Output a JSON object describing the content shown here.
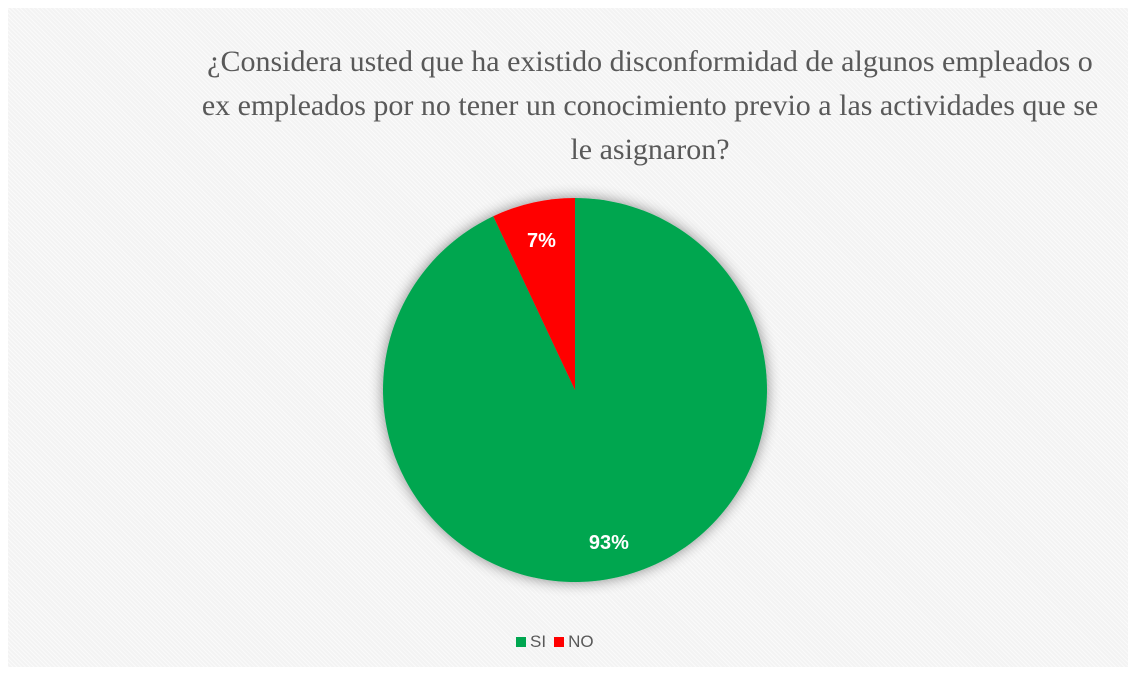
{
  "chart_data": {
    "type": "pie",
    "title": "¿Considera usted que ha existido disconformidad de algunos empleados o ex empleados por no tener un conocimiento previo a las actividades que se le asignaron?",
    "categories": [
      "SI",
      "NO"
    ],
    "values": [
      93,
      7
    ],
    "labels": [
      "93%",
      "7%"
    ],
    "colors": [
      "#00a650",
      "#ff0000"
    ],
    "legend_position": "bottom"
  }
}
